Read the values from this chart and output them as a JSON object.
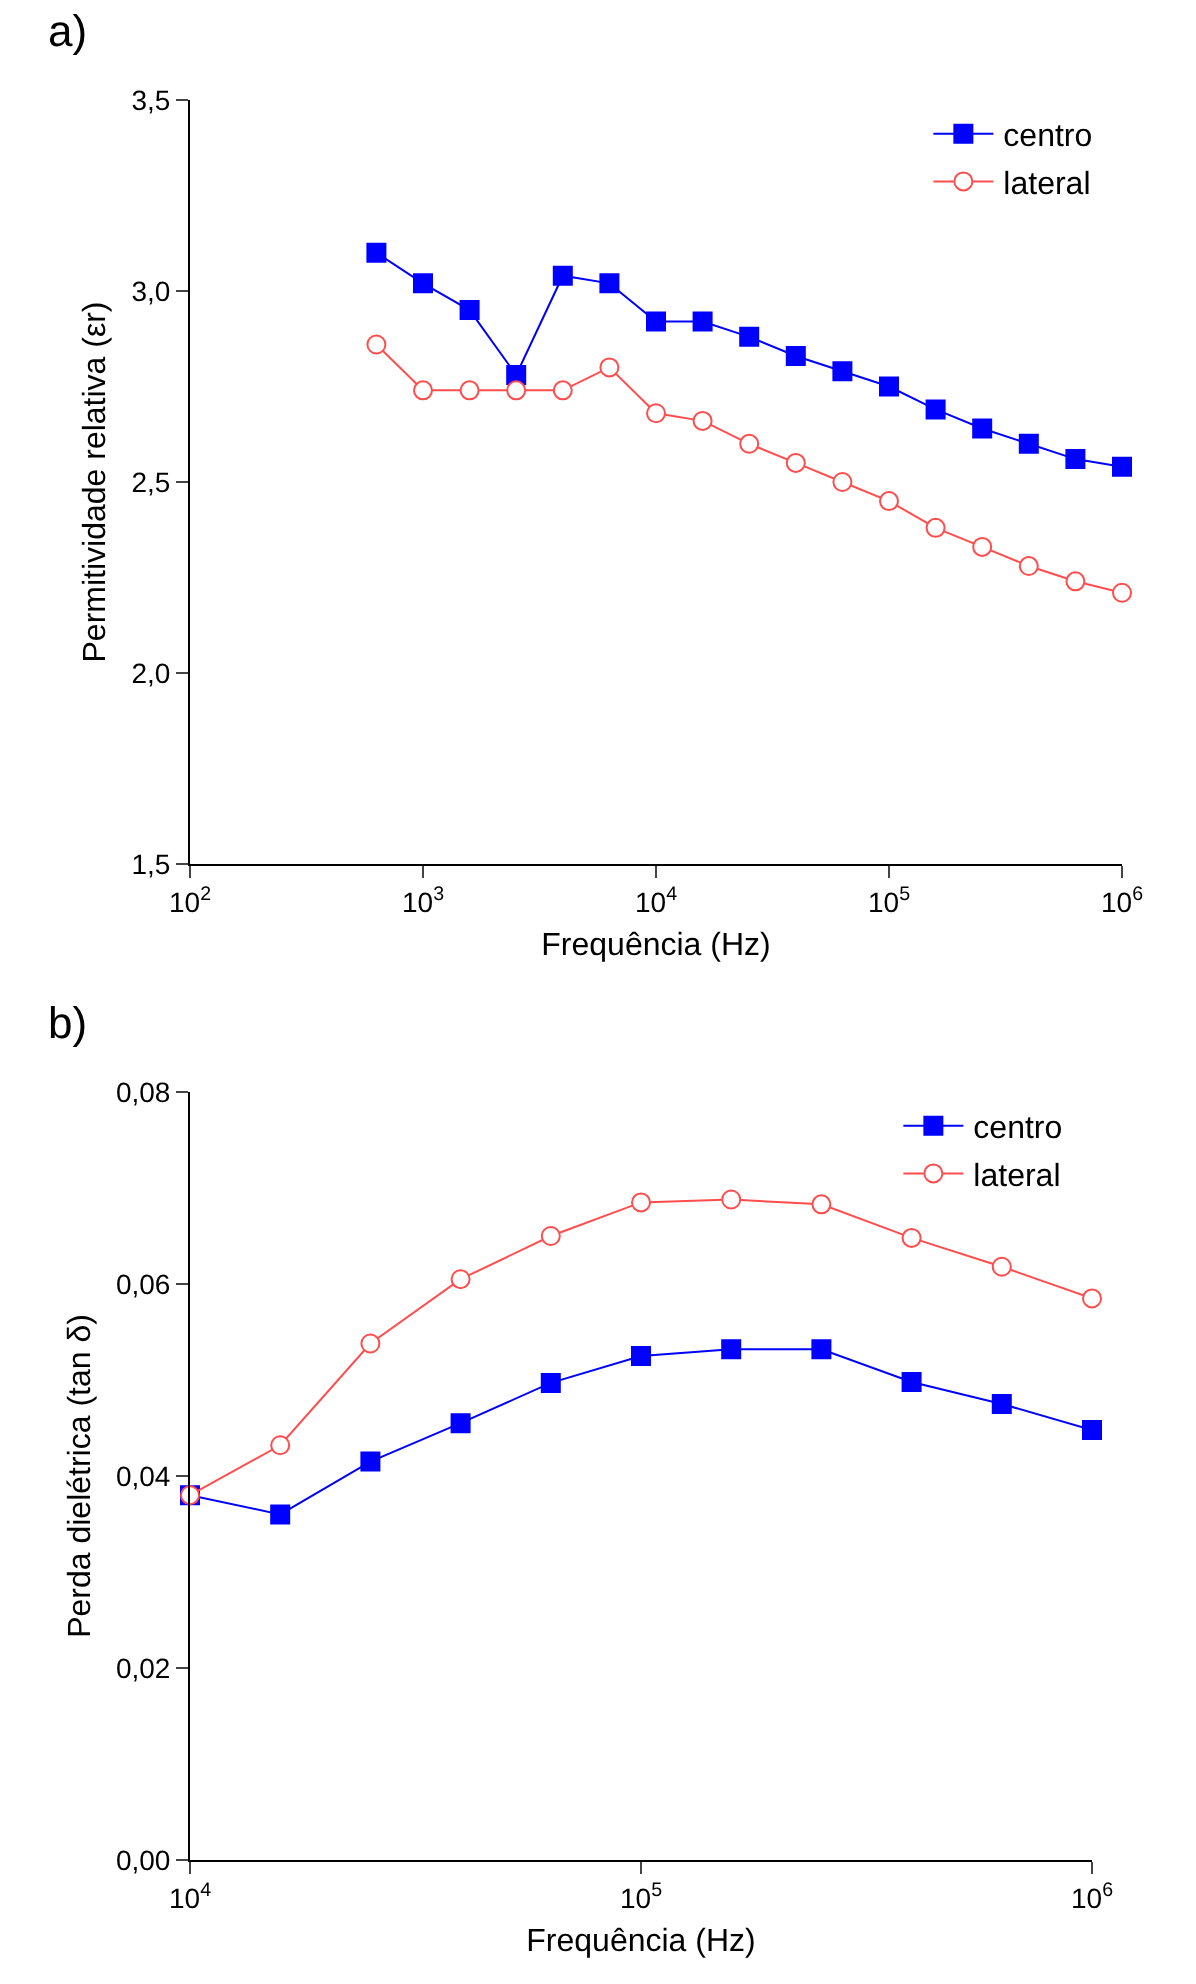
{
  "chart_data": [
    {
      "type": "line",
      "title": "a)",
      "xlabel": "Frequência (Hz)",
      "ylabel": "Permitividade relativa (εr)",
      "log": "x",
      "legend": "top right",
      "x": [
        631,
        1000,
        1585,
        2512,
        3981,
        6310,
        10000,
        15849,
        25119,
        39811,
        63096,
        100000,
        158489,
        251189,
        398107,
        630957,
        1000000
      ],
      "series": [
        {
          "name": "centro",
          "color": "#0000ff",
          "marker": "square",
          "values": [
            3.1,
            3.02,
            2.95,
            2.78,
            3.04,
            3.02,
            2.92,
            2.92,
            2.88,
            2.83,
            2.79,
            2.75,
            2.69,
            2.64,
            2.6,
            2.56,
            2.54
          ]
        },
        {
          "name": "lateral",
          "color": "#ff4d4d",
          "marker": "circle",
          "values": [
            2.86,
            2.74,
            2.74,
            2.74,
            2.74,
            2.8,
            2.68,
            2.66,
            2.6,
            2.55,
            2.5,
            2.45,
            2.38,
            2.33,
            2.28,
            2.24,
            2.21
          ]
        }
      ],
      "xlim": [
        100,
        1000000
      ],
      "xticks": [
        {
          "value": 100,
          "label": "10$^{2}$"
        },
        {
          "value": 1000,
          "label": "10$^{3}$"
        },
        {
          "value": 10000,
          "label": "10$^{4}$"
        },
        {
          "value": 100000,
          "label": "10$^{5}$"
        },
        {
          "value": 1000000,
          "label": "10$^{6}$"
        }
      ],
      "ylim": [
        1.5,
        3.5
      ],
      "yticks": [
        {
          "value": 1.5,
          "label": "1,5"
        },
        {
          "value": 2.0,
          "label": "2,0"
        },
        {
          "value": 2.5,
          "label": "2,5"
        },
        {
          "value": 3.0,
          "label": "3,0"
        },
        {
          "value": 3.5,
          "label": "3,5"
        }
      ]
    },
    {
      "type": "line",
      "title": "b)",
      "xlabel": "Frequência (Hz)",
      "ylabel": "Perda dielétrica (tan δ)",
      "log": "x",
      "legend": "top right",
      "x": [
        10000,
        15849,
        25119,
        39811,
        63096,
        100000,
        158489,
        251189,
        398107,
        630957,
        1000000
      ],
      "series": [
        {
          "name": "centro",
          "color": "#0000ff",
          "marker": "square",
          "values": [
            0.038,
            0.036,
            0.0415,
            0.0455,
            0.0497,
            0.0525,
            0.0532,
            0.0532,
            0.0498,
            0.0475,
            0.0448
          ]
        },
        {
          "name": "lateral",
          "color": "#ff4d4d",
          "marker": "circle",
          "values": [
            0.038,
            0.0432,
            0.0538,
            0.0605,
            0.065,
            0.0685,
            0.0688,
            0.0683,
            0.0648,
            0.0618,
            0.0585
          ]
        }
      ],
      "xlim": [
        10000,
        1000000
      ],
      "xticks": [
        {
          "value": 10000,
          "label": "10$^{4}$"
        },
        {
          "value": 100000,
          "label": "10$^{5}$"
        },
        {
          "value": 1000000,
          "label": "10$^{6}$"
        }
      ],
      "ylim": [
        0,
        0.08
      ],
      "yticks": [
        {
          "value": 0,
          "label": "0,00"
        },
        {
          "value": 0.02,
          "label": "0,02"
        },
        {
          "value": 0.04,
          "label": "0,04"
        },
        {
          "value": 0.06,
          "label": "0,06"
        },
        {
          "value": 0.08,
          "label": "0,08"
        }
      ]
    }
  ]
}
